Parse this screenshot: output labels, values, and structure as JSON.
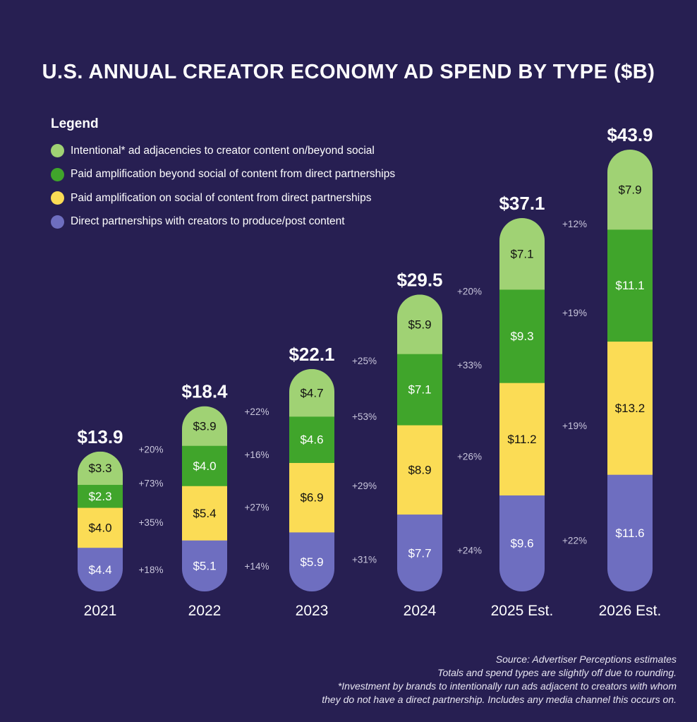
{
  "chart_data": {
    "type": "bar",
    "stacked": true,
    "title": "U.S. ANNUAL CREATOR ECONOMY AD SPEND BY TYPE ($B)",
    "legend_title": "Legend",
    "legend_placement": "top-left",
    "categories": [
      "2021",
      "2022",
      "2023",
      "2024",
      "2025 Est.",
      "2026 Est."
    ],
    "totals": [
      "$13.9",
      "$18.4",
      "$22.1",
      "$29.5",
      "$37.1",
      "$43.9"
    ],
    "total_values": [
      13.9,
      18.4,
      22.1,
      29.5,
      37.1,
      43.9
    ],
    "series": [
      {
        "name": "Direct partnerships with creators to produce/post content",
        "color": "#6e6ec0",
        "text_color": "#ffffff",
        "values": [
          4.4,
          5.1,
          5.9,
          7.7,
          9.6,
          11.6
        ],
        "growth": [
          "+18%",
          "+14%",
          "+31%",
          "+24%",
          "+22%"
        ]
      },
      {
        "name": "Paid amplification on social of content from direct partnerships",
        "color": "#fbdc55",
        "text_color": "#111111",
        "values": [
          4.0,
          5.4,
          6.9,
          8.9,
          11.2,
          13.2
        ],
        "growth": [
          "+35%",
          "+27%",
          "+29%",
          "+26%",
          "+19%"
        ]
      },
      {
        "name": "Paid amplification beyond social of content from direct partnerships",
        "color": "#40a52b",
        "text_color": "#ffffff",
        "values": [
          2.3,
          4.0,
          4.6,
          7.1,
          9.3,
          11.1
        ],
        "growth": [
          "+73%",
          "+16%",
          "+53%",
          "+33%",
          "+19%"
        ]
      },
      {
        "name": "Intentional* ad adjacencies to creator content on/beyond social",
        "color": "#a0d274",
        "text_color": "#111111",
        "values": [
          3.3,
          3.9,
          4.7,
          5.9,
          7.1,
          7.9
        ],
        "growth": [
          "+20%",
          "+22%",
          "+25%",
          "+20%",
          "+12%"
        ]
      }
    ],
    "legend_order": [
      3,
      2,
      1,
      0
    ],
    "notes": [
      "Source: Advertiser Perceptions estimates",
      "Totals and spend types are slightly off due to rounding.",
      "*Investment by brands to intentionally run ads adjacent to creators with whom",
      "they do not have a direct partnership. Includes any media channel this occurs on."
    ]
  }
}
